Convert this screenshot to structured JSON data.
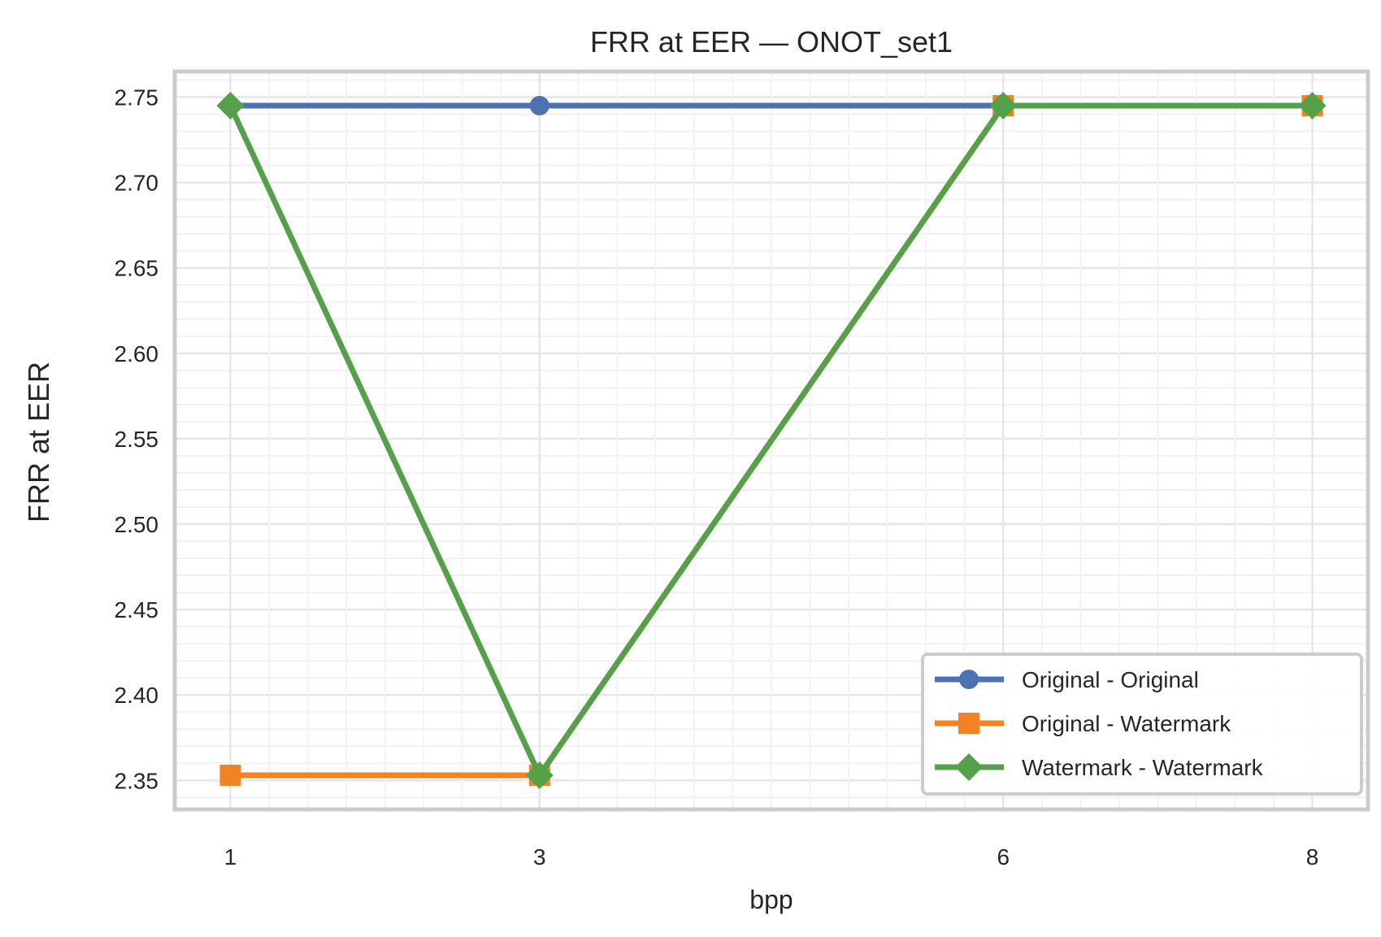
{
  "chart_data": {
    "type": "line",
    "title": "FRR at EER — ONOT_set1",
    "xlabel": "bpp",
    "ylabel": "FRR at EER",
    "x": [
      1,
      3,
      6,
      8
    ],
    "x_ticks": [
      "1",
      "3",
      "6",
      "8"
    ],
    "y_ticks": [
      "2.35",
      "2.40",
      "2.45",
      "2.50",
      "2.55",
      "2.60",
      "2.65",
      "2.70",
      "2.75"
    ],
    "ylim": [
      2.333,
      2.765
    ],
    "xlim": [
      0.64,
      8.36
    ],
    "grid": true,
    "legend_position": "lower-right",
    "series": [
      {
        "name": "Original - Original",
        "color": "#4c72b0",
        "marker": "circle",
        "x": [
          1,
          3,
          6,
          8
        ],
        "values": [
          2.745,
          2.745,
          2.745,
          2.745
        ]
      },
      {
        "name": "Original - Watermark",
        "color": "#f28322",
        "marker": "square",
        "x": [
          1,
          3,
          6,
          8
        ],
        "values": [
          2.353,
          2.353,
          2.745,
          2.745
        ]
      },
      {
        "name": "Watermark - Watermark",
        "color": "#55a14a",
        "marker": "diamond",
        "x": [
          1,
          3,
          6,
          8
        ],
        "values": [
          2.745,
          2.353,
          2.745,
          2.745
        ]
      }
    ]
  }
}
